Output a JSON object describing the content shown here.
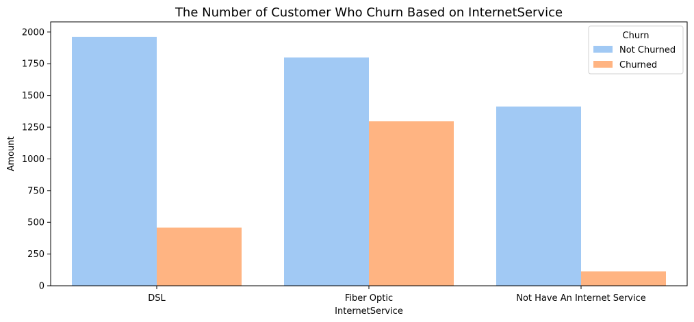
{
  "chart_data": {
    "type": "bar",
    "title": "The Number of Customer Who Churn Based on InternetService",
    "xlabel": "InternetService",
    "ylabel": "Amount",
    "categories": [
      "DSL",
      "Fiber Optic",
      "Not Have An Internet Service"
    ],
    "series": [
      {
        "name": "Not Churned",
        "values": [
          1962,
          1799,
          1413
        ],
        "color": "#a1c9f4"
      },
      {
        "name": "Churned",
        "values": [
          459,
          1297,
          113
        ],
        "color": "#ffb482"
      }
    ],
    "ylim": [
      0,
      2080
    ],
    "yticks": [
      0,
      250,
      500,
      750,
      1000,
      1250,
      1500,
      1750,
      2000
    ],
    "legend": {
      "title": "Churn",
      "placement": "top-right"
    },
    "grid": false
  }
}
